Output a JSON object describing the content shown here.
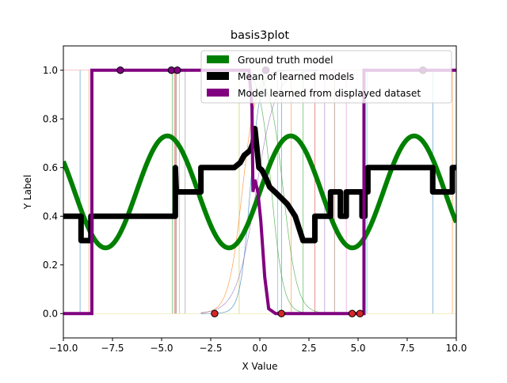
{
  "chart_data": {
    "type": "line",
    "title": "basis3plot",
    "xlabel": "X Value",
    "ylabel": "Y Label",
    "xlim": [
      -10,
      10
    ],
    "ylim": [
      -0.1,
      1.1
    ],
    "x_ticks": [
      -10,
      -7.5,
      -5,
      -2.5,
      0,
      2.5,
      5,
      7.5,
      10
    ],
    "x_tick_labels": [
      "−10.0",
      "−7.5",
      "−5.0",
      "−2.5",
      "0.0",
      "2.5",
      "5.0",
      "7.5",
      "10.0"
    ],
    "y_ticks": [
      0.0,
      0.2,
      0.4,
      0.6,
      0.8,
      1.0
    ],
    "y_tick_labels": [
      "0.0",
      "0.2",
      "0.4",
      "0.6",
      "0.8",
      "1.0"
    ],
    "grid": false,
    "legend_placement": "upper-center",
    "series": [
      {
        "name": "Ground truth model",
        "color": "#008000",
        "kind": "function",
        "function": "0.5 + 0.23*sin(x)",
        "x_range": [
          -10,
          10
        ],
        "points": [
          [
            -10,
            0.63
          ],
          [
            -7.85,
            0.27
          ],
          [
            -4.71,
            0.73
          ],
          [
            -1.57,
            0.27
          ],
          [
            1.57,
            0.73
          ],
          [
            4.71,
            0.27
          ],
          [
            7.85,
            0.73
          ],
          [
            10,
            0.37
          ]
        ]
      },
      {
        "name": "Mean of learned models",
        "color": "#000000",
        "kind": "step",
        "points": [
          [
            -10,
            0.4
          ],
          [
            -9.1,
            0.4
          ],
          [
            -9.1,
            0.3
          ],
          [
            -8.6,
            0.3
          ],
          [
            -8.6,
            0.4
          ],
          [
            -4.3,
            0.4
          ],
          [
            -4.3,
            0.6
          ],
          [
            -4.25,
            0.5
          ],
          [
            -3.0,
            0.5
          ],
          [
            -3.0,
            0.6
          ],
          [
            -1.3,
            0.6
          ],
          [
            -1.0,
            0.62
          ],
          [
            -0.8,
            0.65
          ],
          [
            -0.5,
            0.67
          ],
          [
            -0.35,
            0.7
          ],
          [
            -0.25,
            0.76
          ],
          [
            -0.15,
            0.68
          ],
          [
            -0.05,
            0.6
          ],
          [
            0.1,
            0.59
          ],
          [
            0.35,
            0.55
          ],
          [
            0.5,
            0.52
          ],
          [
            0.9,
            0.49
          ],
          [
            1.4,
            0.45
          ],
          [
            1.8,
            0.4
          ],
          [
            2.0,
            0.35
          ],
          [
            2.2,
            0.3
          ],
          [
            2.8,
            0.3
          ],
          [
            2.8,
            0.4
          ],
          [
            3.6,
            0.4
          ],
          [
            3.6,
            0.5
          ],
          [
            4.1,
            0.5
          ],
          [
            4.1,
            0.4
          ],
          [
            4.4,
            0.4
          ],
          [
            4.4,
            0.5
          ],
          [
            5.2,
            0.5
          ],
          [
            5.2,
            0.4
          ],
          [
            5.35,
            0.4
          ],
          [
            5.35,
            0.5
          ],
          [
            5.5,
            0.5
          ],
          [
            5.5,
            0.6
          ],
          [
            8.8,
            0.6
          ],
          [
            8.8,
            0.5
          ],
          [
            9.8,
            0.5
          ],
          [
            9.8,
            0.6
          ],
          [
            10,
            0.6
          ]
        ]
      },
      {
        "name": "Model learned from displayed dataset",
        "color": "#800080",
        "kind": "step",
        "points": [
          [
            -10,
            0.0
          ],
          [
            -8.55,
            0.0
          ],
          [
            -8.55,
            1.0
          ],
          [
            -0.55,
            1.0
          ],
          [
            -0.4,
            0.85
          ],
          [
            -0.35,
            0.5
          ],
          [
            -0.25,
            0.55
          ],
          [
            -0.1,
            0.5
          ],
          [
            0.05,
            0.38
          ],
          [
            0.25,
            0.15
          ],
          [
            0.45,
            0.02
          ],
          [
            0.8,
            0.0
          ],
          [
            5.3,
            0.0
          ],
          [
            5.3,
            1.0
          ],
          [
            10,
            1.0
          ]
        ]
      },
      {
        "name": "",
        "kind": "faint-models",
        "colors": [
          "#1f77b4",
          "#ff7f0e",
          "#2ca02c",
          "#d62728",
          "#9467bd",
          "#8c564b",
          "#e377c2",
          "#7f7f7f",
          "#bcbd22",
          "#17becf"
        ],
        "step_x": [
          -9.15,
          -8.7,
          -4.45,
          -4.35,
          -4.3,
          -4.25,
          -4.1,
          -3.8,
          -1.05,
          0.9,
          1.1,
          1.6,
          2.2,
          2.8,
          3.3,
          3.8,
          4.4,
          5.25,
          5.35,
          5.45,
          8.8,
          9.8
        ]
      }
    ],
    "datasets": [
      {
        "name": "",
        "label_class": 1,
        "edge_color": "#000000",
        "face_color": "#800080",
        "x": [
          -7.1,
          -4.5,
          -4.2,
          0.3,
          8.3
        ],
        "y": [
          1,
          1,
          1,
          1,
          1
        ]
      },
      {
        "name": "",
        "label_class": 0,
        "edge_color": "#000000",
        "face_color": "#d62728",
        "x": [
          -2.3,
          1.1,
          4.7,
          5.1
        ],
        "y": [
          0,
          0,
          0,
          0
        ]
      }
    ]
  }
}
